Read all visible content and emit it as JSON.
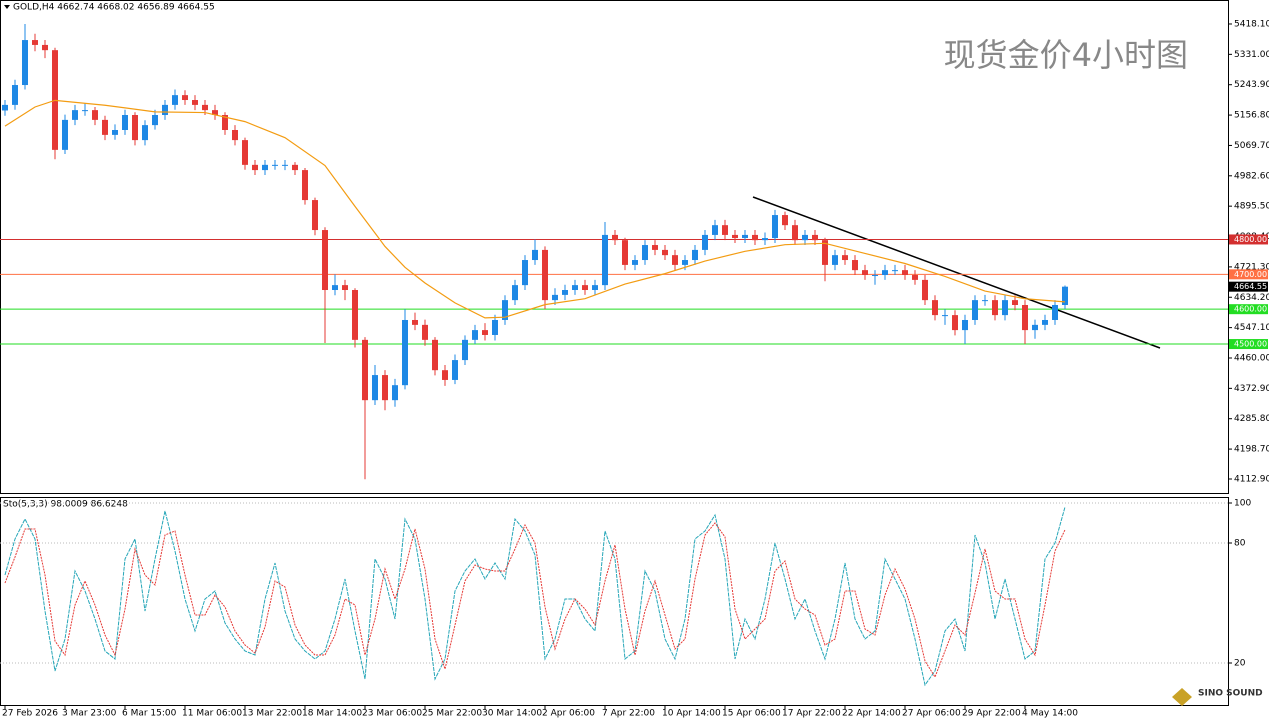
{
  "header": "GOLD,H4  4662.74 4668.02 4656.89 4664.55",
  "watermark": "现货金价4小时图",
  "logo": "SINO SOUND",
  "chart_data": [
    {
      "type": "candlestick",
      "up_color": "#1e88e5",
      "down_color": "#e53935",
      "ylim": [
        4072.7,
        5486.9
      ],
      "yticks": [
        {
          "value": 5418.1,
          "label": "5418.10"
        },
        {
          "value": 5331,
          "label": "5331.00"
        },
        {
          "value": 5243.9,
          "label": "5243.90"
        },
        {
          "value": 5156.8,
          "label": "5156.80"
        },
        {
          "value": 5069.7,
          "label": "5069.70"
        },
        {
          "value": 4982.6,
          "label": "4982.60"
        },
        {
          "value": 4895.5,
          "label": "4895.50"
        },
        {
          "value": 4808.4,
          "label": "4808.40"
        },
        {
          "value": 4721.3,
          "label": "4721.30"
        },
        {
          "value": 4634.2,
          "label": "4634.20"
        },
        {
          "value": 4547.1,
          "label": "4547.10"
        },
        {
          "value": 4460,
          "label": "4460.00"
        },
        {
          "value": 4372.9,
          "label": "4372.90"
        },
        {
          "value": 4285.8,
          "label": "4285.80"
        },
        {
          "value": 4198.7,
          "label": "4198.70"
        },
        {
          "value": 4112.9,
          "label": "4112.90"
        }
      ],
      "categories": [
        "27 Feb 2026",
        null,
        null,
        null,
        null,
        null,
        "3 Mar 23:00",
        null,
        null,
        null,
        null,
        null,
        "6 Mar 15:00",
        null,
        null,
        null,
        null,
        null,
        "11 Mar 06:00",
        null,
        null,
        null,
        null,
        null,
        "13 Mar 22:00",
        null,
        null,
        null,
        null,
        null,
        "18 Mar 14:00",
        null,
        null,
        null,
        null,
        null,
        "23 Mar 06:00",
        null,
        null,
        null,
        null,
        null,
        "25 Mar 22:00",
        null,
        null,
        null,
        null,
        null,
        "30 Mar 14:00",
        null,
        null,
        null,
        null,
        null,
        "2 Apr 06:00",
        null,
        null,
        null,
        null,
        null,
        "7 Apr 22:00",
        null,
        null,
        null,
        null,
        null,
        "10 Apr 14:00",
        null,
        null,
        null,
        null,
        null,
        "15 Apr 06:00",
        null,
        null,
        null,
        null,
        null,
        "17 Apr 22:00",
        null,
        null,
        null,
        null,
        null,
        "22 Apr 14:00",
        null,
        null,
        null,
        null,
        null,
        "27 Apr 06:00",
        null,
        null,
        null,
        null,
        null,
        "29 Apr 22:00",
        null,
        null,
        null,
        null,
        null,
        "4 May 14:00",
        null,
        null,
        null,
        null
      ],
      "open": [
        5170,
        5186,
        5243,
        5372,
        5358,
        5343,
        5057,
        5143,
        5171,
        5171,
        5143,
        5100,
        5114,
        5157,
        5085,
        5128,
        5157,
        5186,
        5214,
        5200,
        5186,
        5171,
        5157,
        5114,
        5085,
        5014,
        4999,
        5014,
        5014,
        5014,
        4999,
        4913,
        4827,
        4655,
        4669,
        4655,
        4512,
        4339,
        4411,
        4339,
        4382,
        4569,
        4555,
        4512,
        4425,
        4397,
        4454,
        4512,
        4540,
        4526,
        4569,
        4626,
        4669,
        4741,
        4770,
        4626,
        4641,
        4655,
        4669,
        4655,
        4669,
        4813,
        4798,
        4727,
        4741,
        4784,
        4770,
        4755,
        4727,
        4741,
        4770,
        4813,
        4841,
        4813,
        4804,
        4813,
        4798,
        4804,
        4870,
        4841,
        4798,
        4813,
        4798,
        4727,
        4755,
        4741,
        4712,
        4698,
        4698,
        4712,
        4712,
        4698,
        4684,
        4626,
        4583,
        4583,
        4540,
        4569,
        4626,
        4626,
        4583,
        4626,
        4612,
        4540,
        4555,
        4569,
        4612
      ],
      "high": [
        5200,
        5258,
        5418,
        5390,
        5372,
        5350,
        5158,
        5186,
        5190,
        5180,
        5155,
        5130,
        5172,
        5165,
        5142,
        5172,
        5200,
        5230,
        5228,
        5214,
        5200,
        5186,
        5165,
        5128,
        5092,
        5028,
        5028,
        5028,
        5028,
        5022,
        5005,
        4920,
        4835,
        4700,
        4684,
        4660,
        4520,
        4440,
        4425,
        4400,
        4600,
        4590,
        4570,
        4520,
        4440,
        4470,
        4525,
        4555,
        4560,
        4584,
        4640,
        4684,
        4755,
        4800,
        4780,
        4660,
        4670,
        4684,
        4684,
        4684,
        4850,
        4827,
        4805,
        4755,
        4798,
        4798,
        4784,
        4770,
        4755,
        4784,
        4827,
        4856,
        4856,
        4827,
        4827,
        4827,
        4820,
        4885,
        4880,
        4856,
        4827,
        4827,
        4805,
        4770,
        4770,
        4755,
        4727,
        4712,
        4727,
        4727,
        4727,
        4712,
        4698,
        4640,
        4600,
        4597,
        4584,
        4640,
        4641,
        4640,
        4640,
        4640,
        4626,
        4570,
        4584,
        4626,
        4668.02
      ],
      "low": [
        5155,
        5172,
        5230,
        5340,
        5320,
        5030,
        5045,
        5128,
        5155,
        5128,
        5085,
        5086,
        5100,
        5070,
        5070,
        5115,
        5143,
        5172,
        5186,
        5171,
        5157,
        5143,
        5100,
        5070,
        5000,
        4985,
        4985,
        5000,
        4999,
        4985,
        4900,
        4812,
        4503,
        4640,
        4626,
        4490,
        4112,
        4325,
        4310,
        4320,
        4370,
        4540,
        4495,
        4410,
        4380,
        4385,
        4440,
        4500,
        4510,
        4510,
        4555,
        4612,
        4655,
        4727,
        4600,
        4612,
        4626,
        4641,
        4641,
        4641,
        4655,
        4784,
        4712,
        4712,
        4727,
        4755,
        4741,
        4712,
        4712,
        4727,
        4755,
        4798,
        4798,
        4790,
        4790,
        4784,
        4784,
        4790,
        4827,
        4784,
        4784,
        4784,
        4680,
        4712,
        4727,
        4698,
        4684,
        4670,
        4684,
        4698,
        4684,
        4670,
        4612,
        4568,
        4555,
        4525,
        4500,
        4555,
        4610,
        4568,
        4568,
        4597,
        4500,
        4515,
        4540,
        4555,
        4600
      ],
      "close": [
        5186,
        5243,
        5372,
        5358,
        5343,
        5057,
        5143,
        5171,
        5171,
        5143,
        5100,
        5114,
        5157,
        5085,
        5128,
        5157,
        5186,
        5214,
        5200,
        5186,
        5171,
        5157,
        5114,
        5085,
        5014,
        4999,
        5014,
        5014,
        5014,
        4999,
        4913,
        4827,
        4655,
        4669,
        4655,
        4512,
        4339,
        4411,
        4339,
        4382,
        4569,
        4555,
        4512,
        4425,
        4397,
        4454,
        4512,
        4540,
        4526,
        4569,
        4626,
        4669,
        4741,
        4770,
        4626,
        4641,
        4655,
        4669,
        4655,
        4669,
        4813,
        4798,
        4727,
        4741,
        4784,
        4770,
        4755,
        4727,
        4741,
        4770,
        4813,
        4841,
        4813,
        4804,
        4813,
        4798,
        4804,
        4870,
        4841,
        4798,
        4813,
        4798,
        4727,
        4755,
        4741,
        4712,
        4698,
        4698,
        4712,
        4712,
        4698,
        4684,
        4626,
        4583,
        4583,
        4540,
        4569,
        4626,
        4626,
        4583,
        4626,
        4612,
        4540,
        4555,
        4569,
        4612,
        4664.55
      ],
      "ma": {
        "color": "#f39c12",
        "x": [
          0,
          3,
          5,
          10,
          15,
          20,
          24,
          28,
          32,
          35,
          38,
          40,
          42,
          45,
          48,
          50,
          54,
          58,
          62,
          66,
          70,
          74,
          78,
          82,
          86,
          90,
          94,
          98,
          102,
          106
        ],
        "values": [
          5125,
          5180,
          5199,
          5185,
          5166,
          5164,
          5138,
          5092,
          5012,
          4895,
          4780,
          4720,
          4675,
          4618,
          4575,
          4577,
          4613,
          4630,
          4672,
          4702,
          4738,
          4766,
          4785,
          4789,
          4760,
          4731,
          4694,
          4652,
          4630,
          4621
        ]
      },
      "levels": [
        {
          "value": 4800,
          "label": "4800.00",
          "color": "#d32f2f"
        },
        {
          "value": 4700,
          "label": "4700.00",
          "color": "#ff7043"
        },
        {
          "value": 4600,
          "label": "4600.00",
          "color": "#22dd22"
        },
        {
          "value": 4500,
          "label": "4500.00",
          "color": "#22dd22"
        }
      ],
      "last_price": {
        "value": 4664.55,
        "label": "4664.55"
      }
    },
    {
      "type": "line",
      "title": "Sto(5,3,3) 98.0009 86.6248",
      "ylim": [
        -1,
        103
      ],
      "yticks": [
        100,
        80,
        20
      ],
      "series": [
        {
          "color": "#26a6b8",
          "values": [
            64,
            82,
            92,
            82,
            46,
            16,
            32,
            66,
            56,
            42,
            26,
            22,
            72,
            82,
            46,
            72,
            96,
            76,
            52,
            36,
            52,
            56,
            40,
            32,
            26,
            24,
            52,
            70,
            46,
            32,
            26,
            22,
            26,
            42,
            62,
            36,
            12,
            72,
            62,
            42,
            92,
            82,
            52,
            12,
            22,
            56,
            66,
            72,
            62,
            70,
            62,
            92,
            86,
            74,
            22,
            32,
            52,
            52,
            42,
            36,
            86,
            72,
            22,
            26,
            66,
            56,
            32,
            22,
            42,
            82,
            86,
            94,
            72,
            22,
            42,
            32,
            52,
            80,
            62,
            42,
            52,
            36,
            22,
            42,
            70,
            42,
            32,
            36,
            72,
            62,
            52,
            32,
            9,
            16,
            36,
            42,
            26,
            84,
            70,
            42,
            62,
            42,
            22,
            26,
            72,
            80,
            98
          ]
        },
        {
          "color": "#e53935",
          "values": [
            60,
            73,
            87,
            87,
            64,
            31,
            24,
            49,
            61,
            49,
            34,
            24,
            47,
            77,
            64,
            59,
            84,
            86,
            64,
            44,
            44,
            54,
            48,
            36,
            29,
            25,
            38,
            61,
            58,
            39,
            29,
            24,
            24,
            34,
            52,
            49,
            24,
            42,
            67,
            52,
            67,
            87,
            67,
            32,
            17,
            39,
            61,
            69,
            67,
            66,
            66,
            77,
            89,
            80,
            48,
            27,
            42,
            52,
            47,
            39,
            61,
            79,
            47,
            24,
            46,
            61,
            44,
            27,
            32,
            62,
            84,
            90,
            83,
            47,
            32,
            37,
            42,
            66,
            71,
            52,
            47,
            44,
            29,
            32,
            56,
            56,
            37,
            34,
            54,
            67,
            57,
            42,
            21,
            13,
            26,
            39,
            34,
            55,
            77,
            56,
            52,
            52,
            32,
            24,
            49,
            76,
            86.6
          ]
        }
      ]
    }
  ]
}
